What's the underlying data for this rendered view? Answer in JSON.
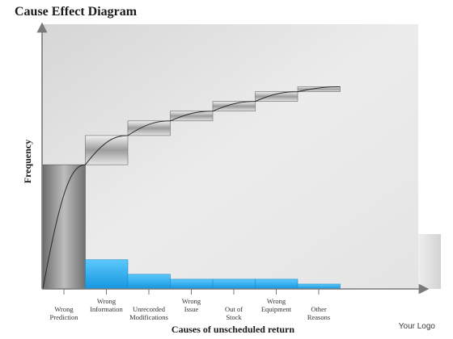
{
  "page": {
    "title": "Cause Effect Diagram",
    "logo": "Your Logo"
  },
  "chart_data": {
    "type": "bar",
    "title": "Cause Effect Diagram",
    "xlabel": "Causes of unscheduled return",
    "ylabel": "Frequency",
    "categories": [
      [
        "Wrong",
        "Prediction"
      ],
      [
        "Wrong",
        "Information"
      ],
      [
        "Unrecorded",
        "Modifications"
      ],
      [
        "Wrong",
        "Issue"
      ],
      [
        "Out of",
        "Stock"
      ],
      [
        "Wrong",
        "Equipment"
      ],
      [
        "Other",
        "Reasons"
      ]
    ],
    "ylim": [
      0,
      100
    ],
    "series": [
      {
        "values": [
          51,
          12,
          6,
          4,
          4,
          4,
          2
        ]
      }
    ],
    "cumulative_percent": [
      51,
      63,
      69,
      73,
      77,
      81,
      83
    ],
    "colors": {
      "bar_first": "#808080",
      "bar_rest": "#1fa8ec",
      "cumulative_box": "#9a9a9a",
      "panel": "#e2e2e2",
      "axis": "#7a7a7a"
    },
    "grid": false,
    "legend": "none"
  }
}
